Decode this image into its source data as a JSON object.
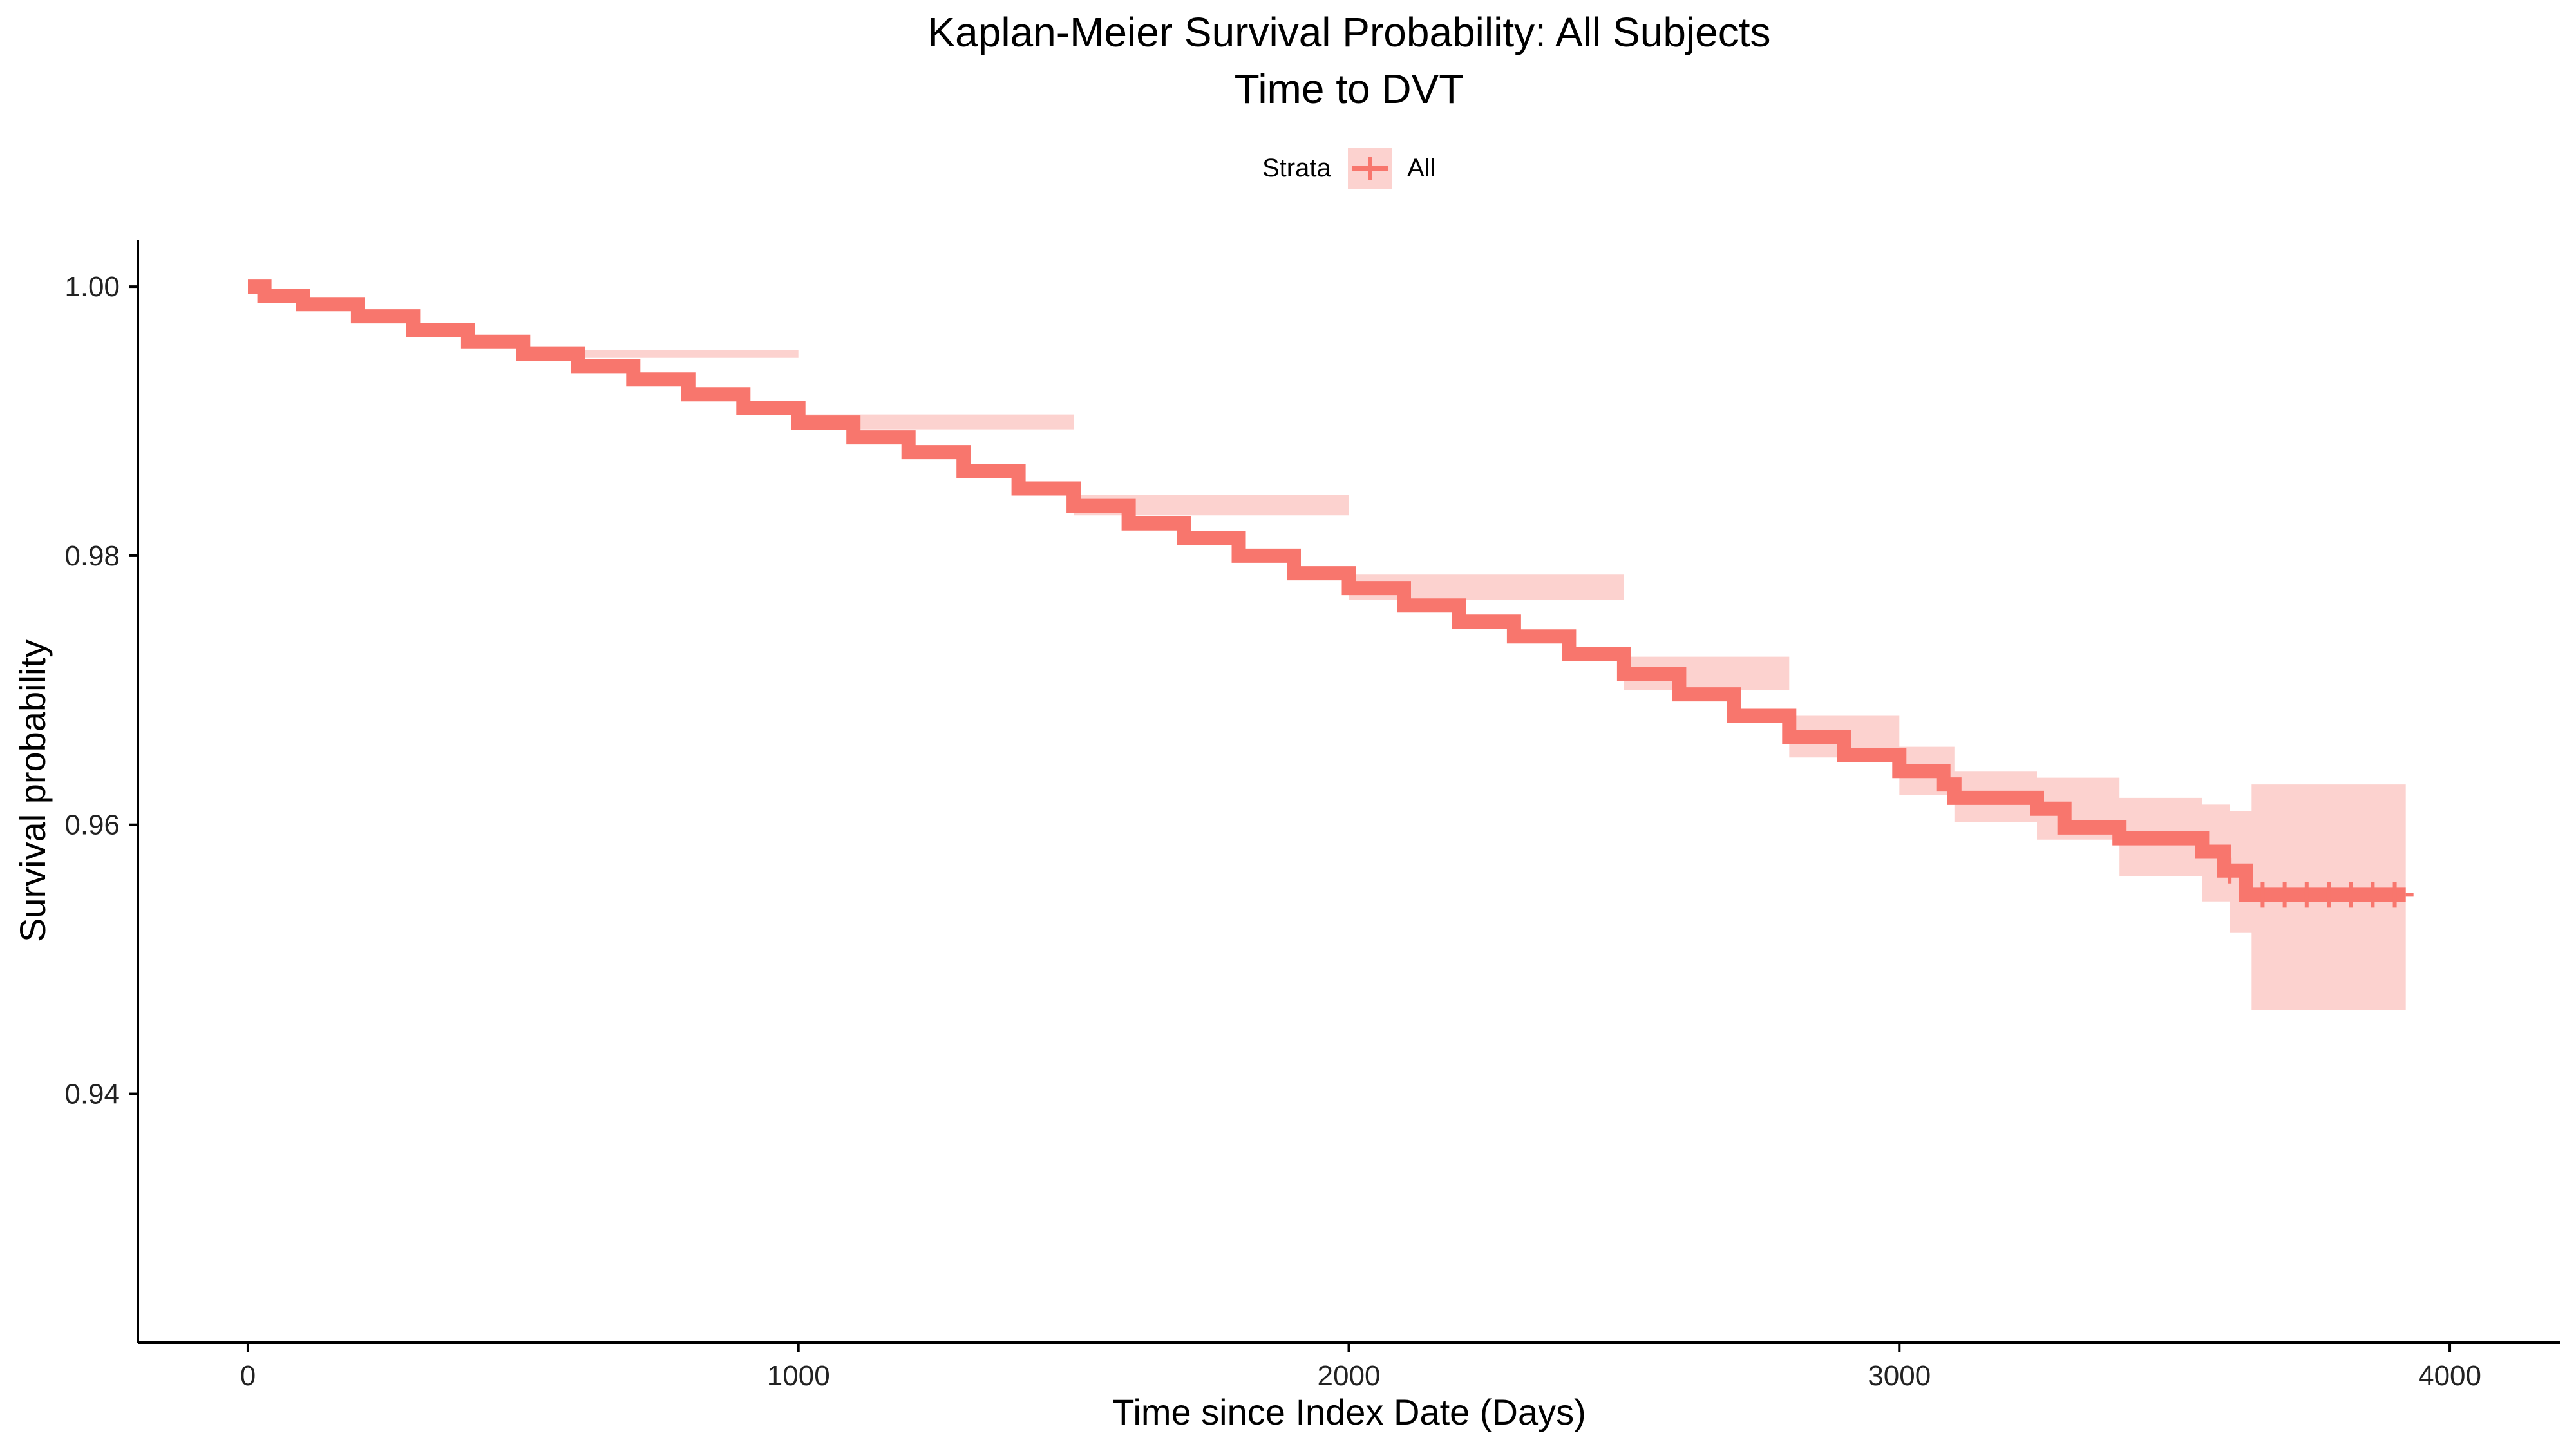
{
  "chart_data": {
    "type": "line",
    "title": "Kaplan-Meier Survival Probability: All Subjects",
    "subtitle": "Time to DVT",
    "xlabel": "Time since Index Date (Days)",
    "ylabel": "Survival probability",
    "xlim": [
      -200,
      4200
    ],
    "ylim": [
      0.9215,
      1.0035
    ],
    "x_ticks": [
      0,
      1000,
      2000,
      3000,
      4000
    ],
    "x_tick_labels": [
      "0",
      "1000",
      "2000",
      "3000",
      "4000"
    ],
    "y_ticks": [
      0.94,
      0.96,
      0.98,
      1.0
    ],
    "y_tick_labels": [
      "0.94",
      "0.96",
      "0.98",
      "1.00"
    ],
    "grid": false,
    "legend": {
      "title": "Strata",
      "position": "top",
      "entries": [
        "All"
      ]
    },
    "colors": {
      "line": "#F8766D",
      "ci_band": "#FCD2CF"
    },
    "series": [
      {
        "name": "All",
        "steps": [
          [
            0,
            1.0
          ],
          [
            30,
            0.9993
          ],
          [
            100,
            0.9987
          ],
          [
            200,
            0.9978
          ],
          [
            300,
            0.9968
          ],
          [
            400,
            0.9959
          ],
          [
            500,
            0.995
          ],
          [
            600,
            0.9941
          ],
          [
            700,
            0.9931
          ],
          [
            800,
            0.992
          ],
          [
            900,
            0.991
          ],
          [
            1000,
            0.9899
          ],
          [
            1100,
            0.9888
          ],
          [
            1200,
            0.9877
          ],
          [
            1300,
            0.9863
          ],
          [
            1400,
            0.985
          ],
          [
            1500,
            0.9837
          ],
          [
            1600,
            0.9824
          ],
          [
            1700,
            0.9813
          ],
          [
            1800,
            0.98
          ],
          [
            1900,
            0.9787
          ],
          [
            2000,
            0.9776
          ],
          [
            2100,
            0.9763
          ],
          [
            2200,
            0.9751
          ],
          [
            2300,
            0.974
          ],
          [
            2400,
            0.9727
          ],
          [
            2500,
            0.9712
          ],
          [
            2600,
            0.9697
          ],
          [
            2700,
            0.9681
          ],
          [
            2800,
            0.9665
          ],
          [
            2900,
            0.9652
          ],
          [
            3000,
            0.964
          ],
          [
            3080,
            0.963
          ],
          [
            3100,
            0.962
          ],
          [
            3250,
            0.9612
          ],
          [
            3300,
            0.9598
          ],
          [
            3400,
            0.959
          ],
          [
            3550,
            0.958
          ],
          [
            3590,
            0.9566
          ],
          [
            3630,
            0.9548
          ],
          [
            3920,
            0.9548
          ]
        ],
        "ci_lower": [
          [
            0,
            1.0
          ],
          [
            500,
            0.9947
          ],
          [
            1000,
            0.9894
          ],
          [
            1500,
            0.983
          ],
          [
            2000,
            0.9767
          ],
          [
            2500,
            0.97
          ],
          [
            2800,
            0.965
          ],
          [
            3000,
            0.9622
          ],
          [
            3100,
            0.9602
          ],
          [
            3250,
            0.9589
          ],
          [
            3400,
            0.9562
          ],
          [
            3550,
            0.9543
          ],
          [
            3600,
            0.952
          ],
          [
            3640,
            0.9462
          ],
          [
            3920,
            0.9462
          ]
        ],
        "ci_upper": [
          [
            0,
            1.0
          ],
          [
            500,
            0.9953
          ],
          [
            1000,
            0.9905
          ],
          [
            1500,
            0.9845
          ],
          [
            2000,
            0.9786
          ],
          [
            2500,
            0.9725
          ],
          [
            2800,
            0.9681
          ],
          [
            3000,
            0.9658
          ],
          [
            3100,
            0.964
          ],
          [
            3250,
            0.9635
          ],
          [
            3400,
            0.962
          ],
          [
            3550,
            0.9615
          ],
          [
            3600,
            0.961
          ],
          [
            3640,
            0.963
          ],
          [
            3920,
            0.963
          ]
        ],
        "censor_marks": [
          [
            3600,
            0.9566
          ],
          [
            3660,
            0.9548
          ],
          [
            3700,
            0.9548
          ],
          [
            3740,
            0.9548
          ],
          [
            3780,
            0.9548
          ],
          [
            3820,
            0.9548
          ],
          [
            3860,
            0.9548
          ],
          [
            3900,
            0.9548
          ]
        ]
      }
    ]
  }
}
